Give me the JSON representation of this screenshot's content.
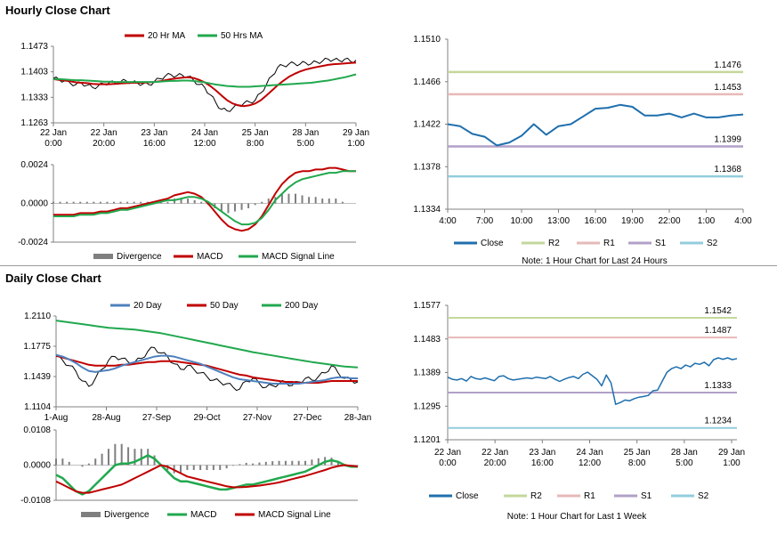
{
  "sections": [
    {
      "title": "Hourly Close Chart"
    },
    {
      "title": "Daily Close Chart"
    }
  ],
  "colors": {
    "ma_short": "#c00000",
    "ma_long": "#21a84e",
    "ma_blue": "#4f81bd",
    "close": "#1f6fad",
    "r2": "#c4d79b",
    "r1": "#e6b9b8",
    "s1": "#b1a0c7",
    "s2": "#93cddd",
    "divergence": "#7f7f7f",
    "axis": "#808080"
  },
  "chart_data": [
    {
      "id": "hourly_price",
      "type": "line",
      "legend": [
        "20 Hr MA",
        "50 Hrs MA"
      ],
      "y_ticks": [
        "1.1473",
        "1.1403",
        "1.1333",
        "1.1263"
      ],
      "ylim": [
        1.1263,
        1.1473
      ],
      "x_ticks": [
        {
          "l1": "22 Jan",
          "l2": "0:00"
        },
        {
          "l1": "22 Jan",
          "l2": "20:00"
        },
        {
          "l1": "23 Jan",
          "l2": "16:00"
        },
        {
          "l1": "24 Jan",
          "l2": "12:00"
        },
        {
          "l1": "25 Jan",
          "l2": "8:00"
        },
        {
          "l1": "28 Jan",
          "l2": "5:00"
        },
        {
          "l1": "29 Jan",
          "l2": "1:00"
        }
      ],
      "close": [
        1.1385,
        1.1382,
        1.1378,
        1.1372,
        1.1368,
        1.1372,
        1.1366,
        1.136,
        1.1364,
        1.137,
        1.1374,
        1.1372,
        1.1376,
        1.1378,
        1.1374,
        1.1372,
        1.137,
        1.1368,
        1.1376,
        1.1384,
        1.1392,
        1.1395,
        1.1392,
        1.1394,
        1.139,
        1.138,
        1.1368,
        1.136,
        1.134,
        1.1318,
        1.13,
        1.1296,
        1.1303,
        1.131,
        1.1317,
        1.132,
        1.1325,
        1.1345,
        1.1368,
        1.1392,
        1.1415,
        1.142,
        1.1424,
        1.1426,
        1.1424,
        1.1428,
        1.1425,
        1.143,
        1.1432,
        1.1438,
        1.1436,
        1.1434,
        1.1438,
        1.1432,
        1.1435
      ],
      "ma20": [
        1.1383,
        1.1381,
        1.1379,
        1.1377,
        1.1374,
        1.1373,
        1.1372,
        1.137,
        1.1369,
        1.1369,
        1.1369,
        1.137,
        1.1371,
        1.1372,
        1.1373,
        1.1373,
        1.1373,
        1.1374,
        1.1375,
        1.1377,
        1.138,
        1.1383,
        1.1385,
        1.1387,
        1.1388,
        1.1386,
        1.1381,
        1.1374,
        1.1364,
        1.1352,
        1.1338,
        1.1325,
        1.1316,
        1.1311,
        1.1309,
        1.1311,
        1.1316,
        1.1325,
        1.1338,
        1.1352,
        1.1366,
        1.1378,
        1.1389,
        1.1397,
        1.1404,
        1.1409,
        1.1413,
        1.1416,
        1.1419,
        1.1422,
        1.1424,
        1.1425,
        1.1426,
        1.1427,
        1.1428
      ],
      "ma50": [
        1.1383,
        1.1383,
        1.1382,
        1.1381,
        1.138,
        1.138,
        1.1379,
        1.1378,
        1.1377,
        1.1376,
        1.1376,
        1.1375,
        1.1375,
        1.1375,
        1.1375,
        1.1375,
        1.1375,
        1.1375,
        1.1375,
        1.1376,
        1.1377,
        1.1378,
        1.1378,
        1.1379,
        1.1379,
        1.1378,
        1.1376,
        1.1374,
        1.1371,
        1.1368,
        1.1366,
        1.1364,
        1.1363,
        1.1362,
        1.1362,
        1.1362,
        1.1363,
        1.1364,
        1.1365,
        1.1366,
        1.1367,
        1.1368,
        1.1369,
        1.137,
        1.1371,
        1.1372,
        1.1373,
        1.1375,
        1.1377,
        1.1379,
        1.1382,
        1.1385,
        1.1388,
        1.1392,
        1.1396
      ]
    },
    {
      "id": "hourly_macd",
      "type": "line",
      "legend": [
        "Divergence",
        "MACD",
        "MACD Signal Line"
      ],
      "y_ticks": [
        "0.0024",
        "0.0000",
        "-0.0024"
      ],
      "ylim": [
        -0.0024,
        0.0024
      ],
      "macd": [
        -0.0007,
        -0.0007,
        -0.0007,
        -0.0007,
        -0.0006,
        -0.0006,
        -0.0006,
        -0.0005,
        -0.0005,
        -0.0004,
        -0.0003,
        -0.0003,
        -0.0002,
        -0.0001,
        0.0,
        0.0001,
        0.0002,
        0.0003,
        0.0005,
        0.0006,
        0.0007,
        0.0006,
        0.0004,
        0.0,
        -0.0005,
        -0.001,
        -0.0014,
        -0.0016,
        -0.0017,
        -0.0016,
        -0.0013,
        -0.0008,
        -0.0001,
        0.0006,
        0.0012,
        0.0016,
        0.0019,
        0.002,
        0.002,
        0.0021,
        0.0021,
        0.0022,
        0.0022,
        0.0021,
        0.002,
        0.002
      ],
      "signal": [
        -0.0008,
        -0.0008,
        -0.0008,
        -0.0008,
        -0.0007,
        -0.0007,
        -0.0007,
        -0.0006,
        -0.0006,
        -0.0005,
        -0.0004,
        -0.0004,
        -0.0003,
        -0.0002,
        -0.0001,
        0.0,
        0.0001,
        0.0002,
        0.0002,
        0.0003,
        0.0004,
        0.0004,
        0.0003,
        0.0001,
        -0.0002,
        -0.0005,
        -0.0008,
        -0.0011,
        -0.0013,
        -0.0013,
        -0.0012,
        -0.0009,
        -0.0004,
        0.0002,
        0.0006,
        0.001,
        0.0013,
        0.0015,
        0.0016,
        0.0017,
        0.0018,
        0.0019,
        0.0019,
        0.002,
        0.002,
        0.002
      ],
      "divergence": [
        0.0001,
        0.0001,
        0.0001,
        0.0001,
        0.0001,
        0.0001,
        0.0001,
        0.0001,
        0.0001,
        0.0001,
        0.0001,
        0.0001,
        0.0001,
        0.0001,
        0.0001,
        0.0001,
        0.0001,
        0.0001,
        0.0003,
        0.0003,
        0.0003,
        0.0002,
        0.0001,
        -0.0001,
        -0.0003,
        -0.0005,
        -0.0006,
        -0.0005,
        -0.0004,
        -0.0003,
        -0.0001,
        0.0001,
        0.0003,
        0.0004,
        0.0006,
        0.0006,
        0.0006,
        0.0005,
        0.0004,
        0.0004,
        0.0003,
        0.0003,
        0.0003,
        0.0001,
        0.0,
        0.0
      ]
    },
    {
      "id": "hourly_pivot",
      "type": "line",
      "legend": [
        "Close",
        "R2",
        "R1",
        "S1",
        "S2"
      ],
      "note": "Note: 1 Hour Chart for Last 24 Hours",
      "y_ticks": [
        "1.1510",
        "1.1466",
        "1.1422",
        "1.1378",
        "1.1334"
      ],
      "ylim": [
        1.1334,
        1.151
      ],
      "x_ticks": [
        "4:00",
        "7:00",
        "10:00",
        "13:00",
        "16:00",
        "19:00",
        "22:00",
        "1:00",
        "4:00"
      ],
      "levels": [
        {
          "name": "R2",
          "value": 1.1476,
          "label": "1.1476"
        },
        {
          "name": "R1",
          "value": 1.1453,
          "label": "1.1453"
        },
        {
          "name": "S1",
          "value": 1.1399,
          "label": "1.1399"
        },
        {
          "name": "S2",
          "value": 1.1368,
          "label": "1.1368"
        }
      ],
      "close": [
        1.1422,
        1.142,
        1.1412,
        1.1409,
        1.14,
        1.1403,
        1.141,
        1.1422,
        1.1411,
        1.142,
        1.1422,
        1.143,
        1.1438,
        1.1439,
        1.1442,
        1.144,
        1.1431,
        1.1431,
        1.1433,
        1.1429,
        1.1433,
        1.1429,
        1.1429,
        1.1431,
        1.1432
      ]
    },
    {
      "id": "daily_price",
      "type": "line",
      "legend": [
        "20 Day",
        "50 Day",
        "200 Day"
      ],
      "y_ticks": [
        "1.2110",
        "1.1775",
        "1.1439",
        "1.1104"
      ],
      "ylim": [
        1.1104,
        1.211
      ],
      "x_ticks": [
        "1-Aug",
        "28-Aug",
        "27-Sep",
        "29-Oct",
        "27-Nov",
        "27-Dec",
        "28-Jan"
      ],
      "close": [
        1.166,
        1.162,
        1.156,
        1.15,
        1.139,
        1.133,
        1.142,
        1.152,
        1.162,
        1.166,
        1.164,
        1.16,
        1.16,
        1.164,
        1.172,
        1.176,
        1.17,
        1.166,
        1.158,
        1.152,
        1.156,
        1.152,
        1.148,
        1.144,
        1.14,
        1.138,
        1.136,
        1.132,
        1.13,
        1.139,
        1.142,
        1.136,
        1.132,
        1.134,
        1.136,
        1.138,
        1.134,
        1.138,
        1.142,
        1.14,
        1.144,
        1.148,
        1.156,
        1.148,
        1.142,
        1.14,
        1.138
      ],
      "ma20": [
        1.168,
        1.166,
        1.163,
        1.159,
        1.154,
        1.15,
        1.149,
        1.15,
        1.151,
        1.153,
        1.156,
        1.158,
        1.16,
        1.162,
        1.164,
        1.166,
        1.167,
        1.167,
        1.166,
        1.164,
        1.162,
        1.16,
        1.158,
        1.155,
        1.152,
        1.149,
        1.146,
        1.143,
        1.141,
        1.14,
        1.139,
        1.138,
        1.137,
        1.136,
        1.136,
        1.136,
        1.136,
        1.136,
        1.137,
        1.138,
        1.139,
        1.14,
        1.142,
        1.143,
        1.143,
        1.142,
        1.142
      ],
      "ma50": [
        1.167,
        1.165,
        1.163,
        1.161,
        1.159,
        1.157,
        1.156,
        1.156,
        1.156,
        1.156,
        1.157,
        1.157,
        1.158,
        1.159,
        1.16,
        1.16,
        1.161,
        1.161,
        1.161,
        1.16,
        1.159,
        1.158,
        1.157,
        1.156,
        1.154,
        1.152,
        1.15,
        1.148,
        1.146,
        1.145,
        1.143,
        1.142,
        1.141,
        1.14,
        1.139,
        1.138,
        1.138,
        1.137,
        1.137,
        1.137,
        1.137,
        1.138,
        1.139,
        1.139,
        1.139,
        1.139,
        1.139
      ],
      "ma200": [
        1.206,
        1.205,
        1.204,
        1.203,
        1.202,
        1.201,
        1.2,
        1.199,
        1.198,
        1.1975,
        1.197,
        1.1965,
        1.196,
        1.195,
        1.194,
        1.193,
        1.192,
        1.1905,
        1.189,
        1.1875,
        1.186,
        1.1845,
        1.183,
        1.1815,
        1.18,
        1.1785,
        1.177,
        1.1755,
        1.174,
        1.1725,
        1.171,
        1.1698,
        1.1685,
        1.1673,
        1.166,
        1.1648,
        1.1636,
        1.1624,
        1.1612,
        1.16,
        1.159,
        1.158,
        1.157,
        1.156,
        1.155,
        1.1545,
        1.154
      ]
    },
    {
      "id": "daily_macd",
      "type": "line",
      "legend": [
        "Divergence",
        "MACD",
        "MACD Signal Line"
      ],
      "y_ticks": [
        "0.0108",
        "0.0000",
        "-0.0108"
      ],
      "ylim": [
        -0.0108,
        0.0108
      ],
      "macd": [
        -0.003,
        -0.004,
        -0.006,
        -0.008,
        -0.009,
        -0.008,
        -0.006,
        -0.004,
        -0.002,
        0.0,
        0.0005,
        0.0005,
        0.001,
        0.002,
        0.003,
        0.002,
        0.0,
        -0.002,
        -0.004,
        -0.005,
        -0.005,
        -0.0055,
        -0.006,
        -0.0065,
        -0.007,
        -0.0075,
        -0.0075,
        -0.007,
        -0.0065,
        -0.006,
        -0.006,
        -0.0055,
        -0.005,
        -0.0045,
        -0.004,
        -0.0035,
        -0.003,
        -0.0025,
        -0.002,
        -0.001,
        0.0,
        0.001,
        0.0015,
        0.001,
        0.0,
        -0.0005,
        -0.0005
      ],
      "signal": [
        -0.005,
        -0.006,
        -0.007,
        -0.008,
        -0.0085,
        -0.0085,
        -0.008,
        -0.0075,
        -0.007,
        -0.0065,
        -0.006,
        -0.005,
        -0.004,
        -0.003,
        -0.002,
        -0.001,
        0.0,
        -0.0005,
        -0.0015,
        -0.0025,
        -0.0035,
        -0.004,
        -0.0045,
        -0.005,
        -0.0055,
        -0.006,
        -0.0065,
        -0.0068,
        -0.0068,
        -0.0067,
        -0.0065,
        -0.0063,
        -0.006,
        -0.0057,
        -0.0053,
        -0.0048,
        -0.0043,
        -0.0038,
        -0.0033,
        -0.0027,
        -0.0021,
        -0.0015,
        -0.0008,
        -0.0003,
        0.0,
        -0.0002,
        -0.0004
      ],
      "divergence": [
        0.002,
        0.002,
        0.001,
        0.0,
        -0.0005,
        0.0005,
        0.002,
        0.0035,
        0.005,
        0.0065,
        0.0065,
        0.0055,
        0.005,
        0.005,
        0.005,
        0.003,
        0.0,
        -0.0015,
        -0.0025,
        -0.0025,
        -0.0015,
        -0.0015,
        -0.0015,
        -0.0015,
        -0.0015,
        -0.0015,
        -0.001,
        -0.0002,
        0.0003,
        0.0007,
        0.0005,
        0.0008,
        0.001,
        0.0012,
        0.0013,
        0.0013,
        0.0013,
        0.0013,
        0.0013,
        0.0017,
        0.0021,
        0.0025,
        0.0023,
        0.0013,
        0.0,
        -0.0003,
        -0.0001
      ]
    },
    {
      "id": "daily_pivot",
      "type": "line",
      "legend": [
        "Close",
        "R2",
        "R1",
        "S1",
        "S2"
      ],
      "note": "Note: 1 Hour Chart for Last 1 Week",
      "y_ticks": [
        "1.1577",
        "1.1483",
        "1.1389",
        "1.1295",
        "1.1201"
      ],
      "ylim": [
        1.1201,
        1.1577
      ],
      "x_ticks": [
        {
          "l1": "22 Jan",
          "l2": "0:00"
        },
        {
          "l1": "22 Jan",
          "l2": "20:00"
        },
        {
          "l1": "23 Jan",
          "l2": "16:00"
        },
        {
          "l1": "24 Jan",
          "l2": "12:00"
        },
        {
          "l1": "25 Jan",
          "l2": "8:00"
        },
        {
          "l1": "28 Jan",
          "l2": "5:00"
        },
        {
          "l1": "29 Jan",
          "l2": "1:00"
        }
      ],
      "levels": [
        {
          "name": "R2",
          "value": 1.1542,
          "label": "1.1542"
        },
        {
          "name": "R1",
          "value": 1.1487,
          "label": "1.1487"
        },
        {
          "name": "S1",
          "value": 1.1333,
          "label": "1.1333"
        },
        {
          "name": "S2",
          "value": 1.1234,
          "label": "1.1234"
        }
      ],
      "close": [
        1.1376,
        1.137,
        1.1368,
        1.1372,
        1.1365,
        1.1378,
        1.1372,
        1.137,
        1.1374,
        1.137,
        1.1366,
        1.1378,
        1.138,
        1.1372,
        1.1368,
        1.137,
        1.1372,
        1.1374,
        1.1372,
        1.1376,
        1.1374,
        1.1372,
        1.1378,
        1.137,
        1.1364,
        1.137,
        1.1375,
        1.1378,
        1.1372,
        1.1384,
        1.139,
        1.138,
        1.137,
        1.1352,
        1.1382,
        1.136,
        1.13,
        1.1305,
        1.1312,
        1.131,
        1.1316,
        1.132,
        1.1322,
        1.1325,
        1.1338,
        1.134,
        1.1365,
        1.139,
        1.14,
        1.1405,
        1.14,
        1.141,
        1.1405,
        1.1415,
        1.1412,
        1.1418,
        1.1408,
        1.1425,
        1.143,
        1.1426,
        1.143,
        1.1425,
        1.1428
      ]
    }
  ]
}
